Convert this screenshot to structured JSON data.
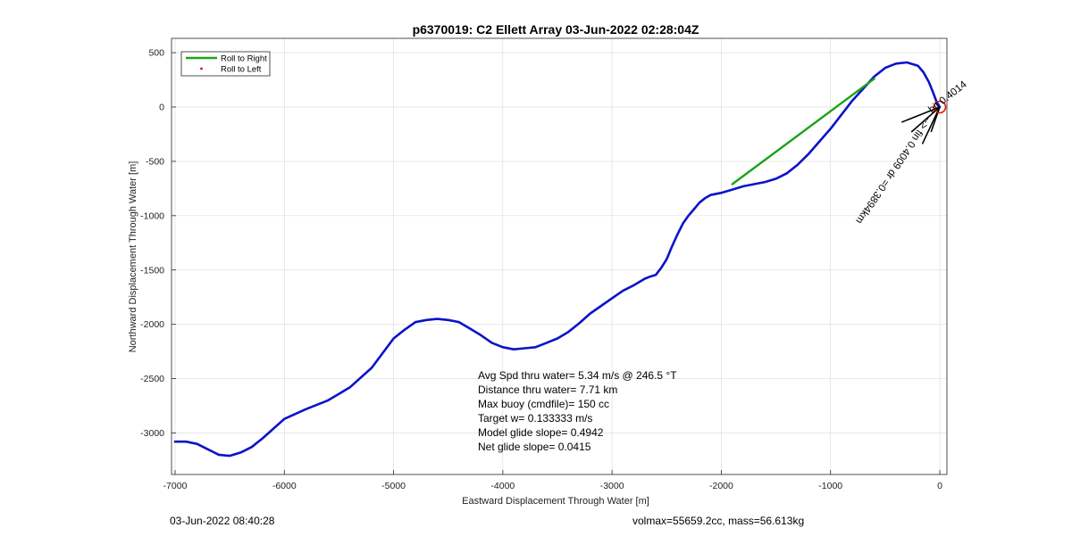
{
  "chart_data": {
    "type": "line",
    "title": "p6370019: C2 Ellett Array 03-Jun-2022 02:28:04Z",
    "xlabel": "Eastward Displacement Through Water [m]",
    "ylabel": "Northward Displacement Through Water [m]",
    "xlim": [
      -7000,
      0
    ],
    "ylim": [
      -3400,
      500
    ],
    "xticks": [
      -7000,
      -6000,
      -5000,
      -4000,
      -3000,
      -2000,
      -1000,
      0
    ],
    "yticks": [
      500,
      0,
      -500,
      -1000,
      -1500,
      -2000,
      -2500,
      -3000
    ],
    "grid": true,
    "legend_position": "top-left",
    "legend": [
      {
        "label": "Roll to Right",
        "color": "#1aa31a",
        "marker": "line"
      },
      {
        "label": "Roll to Left",
        "color": "#e01010",
        "marker": "dot"
      }
    ],
    "series": [
      {
        "name": "",
        "color": "#0a14c8",
        "x": [
          -7000,
          -6900,
          -6800,
          -6700,
          -6600,
          -6500,
          -6400,
          -6300,
          -6200,
          -6100,
          -6000,
          -5800,
          -5600,
          -5400,
          -5200,
          -5000,
          -4900,
          -4800,
          -4700,
          -4600,
          -4500,
          -4400,
          -4300,
          -4200,
          -4100,
          -4000,
          -3900,
          -3800,
          -3700,
          -3600,
          -3500,
          -3400,
          -3300,
          -3200,
          -3100,
          -3000,
          -2900,
          -2800,
          -2700,
          -2650,
          -2600,
          -2550,
          -2500,
          -2450,
          -2400,
          -2350,
          -2300,
          -2250,
          -2200,
          -2150,
          -2100,
          -2000,
          -1900,
          -1800,
          -1700,
          -1600,
          -1500,
          -1400,
          -1300,
          -1200,
          -1000,
          -800,
          -600,
          -500,
          -400,
          -300,
          -200,
          -150,
          -100,
          -60,
          -30,
          0
        ],
        "y": [
          -3080,
          -3080,
          -3100,
          -3150,
          -3200,
          -3210,
          -3180,
          -3130,
          -3050,
          -2960,
          -2870,
          -2780,
          -2700,
          -2580,
          -2400,
          -2130,
          -2050,
          -1980,
          -1960,
          -1950,
          -1960,
          -1980,
          -2040,
          -2100,
          -2170,
          -2210,
          -2230,
          -2220,
          -2210,
          -2170,
          -2130,
          -2070,
          -1990,
          -1900,
          -1830,
          -1760,
          -1690,
          -1640,
          -1580,
          -1560,
          -1545,
          -1480,
          -1400,
          -1280,
          -1170,
          -1070,
          -1000,
          -940,
          -880,
          -840,
          -810,
          -790,
          -760,
          -730,
          -710,
          -690,
          -660,
          -610,
          -530,
          -430,
          -200,
          60,
          280,
          360,
          400,
          410,
          380,
          320,
          230,
          130,
          50,
          0
        ]
      },
      {
        "name": "Roll to Right",
        "color": "#1aa31a",
        "x": [
          -1900,
          -600
        ],
        "y": [
          -710,
          260
        ]
      }
    ],
    "annotations": {
      "circle": {
        "x": 0,
        "y": 0,
        "color": "#e01010"
      },
      "rotated_label": "--> fin 0.4009 dr =0.3894km",
      "overlap_label": "bit 0.4014",
      "stats": [
        "Avg Spd thru water=  5.34 m/s @ 246.5 °T",
        "Distance thru water=  7.71 km",
        "Max buoy (cmdfile)= 150 cc",
        "Target w= 0.133333 m/s",
        "Model glide slope= 0.4942",
        "Net glide slope= 0.0415"
      ]
    }
  },
  "footer": {
    "left": "03-Jun-2022 08:40:28",
    "right": "volmax=55659.2cc, mass=56.613kg"
  }
}
